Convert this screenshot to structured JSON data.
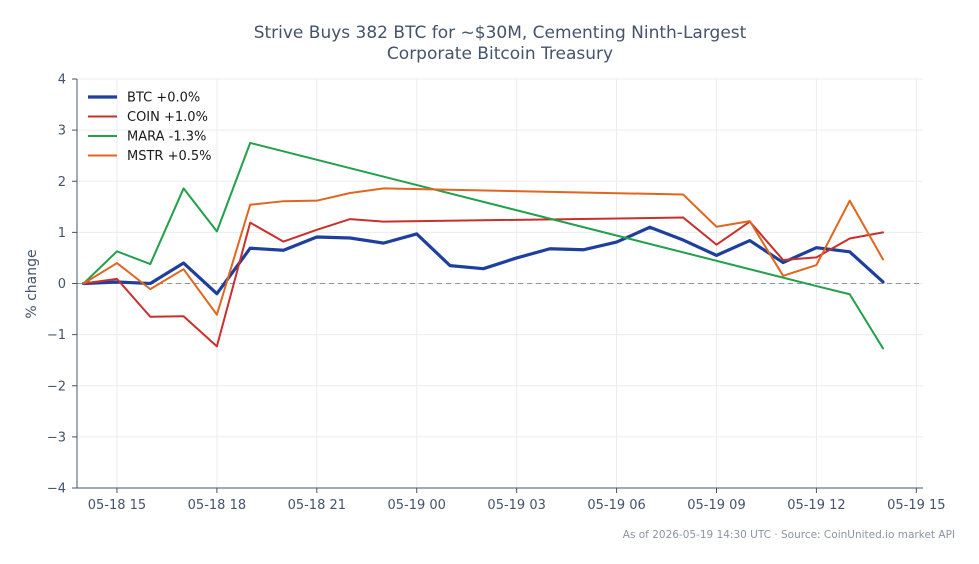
{
  "chart_data": {
    "type": "line",
    "title_lines": [
      "Strive Buys 382 BTC for ~$30M, Cementing Ninth-Largest",
      "Corporate Bitcoin Treasury"
    ],
    "xlabel": "",
    "ylabel": "% change",
    "ylim": [
      -4,
      4
    ],
    "yticks": [
      -4,
      -3,
      -2,
      -1,
      0,
      1,
      2,
      3,
      4
    ],
    "ytick_labels": [
      "−4",
      "−3",
      "−2",
      "−1",
      "0",
      "1",
      "2",
      "3",
      "4"
    ],
    "xlim": [
      "2026-05-18 13:48",
      "2026-05-19 15:12"
    ],
    "xticks": [
      "2026-05-18 15:00",
      "2026-05-18 18:00",
      "2026-05-18 21:00",
      "2026-05-19 00:00",
      "2026-05-19 03:00",
      "2026-05-19 06:00",
      "2026-05-19 09:00",
      "2026-05-19 12:00",
      "2026-05-19 15:00"
    ],
    "xtick_labels": [
      "05-18 15",
      "05-18 18",
      "05-18 21",
      "05-19 00",
      "05-19 03",
      "05-19 06",
      "05-19 09",
      "05-19 12",
      "05-19 15"
    ],
    "grid": true,
    "zero_line": true,
    "legend_position": "top-left",
    "series": [
      {
        "name": "BTC +0.0%",
        "color": "#1f3f9c",
        "width": 3.2,
        "points": [
          [
            "2026-05-18 14:00",
            0.0
          ],
          [
            "2026-05-18 15:00",
            0.03
          ],
          [
            "2026-05-18 16:00",
            0.0
          ],
          [
            "2026-05-18 17:00",
            0.4
          ],
          [
            "2026-05-18 18:00",
            -0.2
          ],
          [
            "2026-05-18 19:00",
            0.69
          ],
          [
            "2026-05-18 20:00",
            0.65
          ],
          [
            "2026-05-18 21:00",
            0.91
          ],
          [
            "2026-05-18 22:00",
            0.89
          ],
          [
            "2026-05-18 23:00",
            0.79
          ],
          [
            "2026-05-19 00:00",
            0.97
          ],
          [
            "2026-05-19 01:00",
            0.35
          ],
          [
            "2026-05-19 02:00",
            0.29
          ],
          [
            "2026-05-19 03:00",
            0.5
          ],
          [
            "2026-05-19 04:00",
            0.68
          ],
          [
            "2026-05-19 05:00",
            0.66
          ],
          [
            "2026-05-19 06:00",
            0.81
          ],
          [
            "2026-05-19 07:00",
            1.1
          ],
          [
            "2026-05-19 08:00",
            0.85
          ],
          [
            "2026-05-19 09:00",
            0.55
          ],
          [
            "2026-05-19 10:00",
            0.84
          ],
          [
            "2026-05-19 11:00",
            0.41
          ],
          [
            "2026-05-19 12:00",
            0.7
          ],
          [
            "2026-05-19 13:00",
            0.62
          ],
          [
            "2026-05-19 14:00",
            0.03
          ]
        ]
      },
      {
        "name": "COIN +1.0%",
        "color": "#c9302c",
        "width": 2,
        "points": [
          [
            "2026-05-18 14:00",
            0.0
          ],
          [
            "2026-05-18 15:00",
            0.09
          ],
          [
            "2026-05-18 16:00",
            -0.65
          ],
          [
            "2026-05-18 17:00",
            -0.64
          ],
          [
            "2026-05-18 18:00",
            -1.23
          ],
          [
            "2026-05-18 19:00",
            1.19
          ],
          [
            "2026-05-18 20:00",
            0.82
          ],
          [
            "2026-05-18 21:00",
            1.05
          ],
          [
            "2026-05-18 22:00",
            1.26
          ],
          [
            "2026-05-18 23:00",
            1.21
          ],
          [
            "2026-05-19 08:00",
            1.29
          ],
          [
            "2026-05-19 09:00",
            0.76
          ],
          [
            "2026-05-19 10:00",
            1.21
          ],
          [
            "2026-05-19 11:00",
            0.46
          ],
          [
            "2026-05-19 12:00",
            0.51
          ],
          [
            "2026-05-19 13:00",
            0.88
          ],
          [
            "2026-05-19 14:00",
            1.0
          ]
        ]
      },
      {
        "name": "MARA -1.3%",
        "color": "#22a04b",
        "width": 2,
        "points": [
          [
            "2026-05-18 14:00",
            0.0
          ],
          [
            "2026-05-18 15:00",
            0.63
          ],
          [
            "2026-05-18 16:00",
            0.38
          ],
          [
            "2026-05-18 17:00",
            1.86
          ],
          [
            "2026-05-18 18:00",
            1.02
          ],
          [
            "2026-05-18 19:00",
            2.75
          ],
          [
            "2026-05-19 12:00",
            -0.05
          ],
          [
            "2026-05-19 13:00",
            -0.21
          ],
          [
            "2026-05-19 14:00",
            -1.27
          ]
        ]
      },
      {
        "name": "MSTR +0.5%",
        "color": "#e0661e",
        "width": 2,
        "points": [
          [
            "2026-05-18 14:00",
            0.0
          ],
          [
            "2026-05-18 15:00",
            0.4
          ],
          [
            "2026-05-18 16:00",
            -0.11
          ],
          [
            "2026-05-18 17:00",
            0.28
          ],
          [
            "2026-05-18 18:00",
            -0.61
          ],
          [
            "2026-05-18 19:00",
            1.54
          ],
          [
            "2026-05-18 20:00",
            1.61
          ],
          [
            "2026-05-18 21:00",
            1.62
          ],
          [
            "2026-05-18 22:00",
            1.77
          ],
          [
            "2026-05-18 23:00",
            1.86
          ],
          [
            "2026-05-19 08:00",
            1.74
          ],
          [
            "2026-05-19 09:00",
            1.11
          ],
          [
            "2026-05-19 10:00",
            1.22
          ],
          [
            "2026-05-19 11:00",
            0.15
          ],
          [
            "2026-05-19 12:00",
            0.36
          ],
          [
            "2026-05-19 13:00",
            1.62
          ],
          [
            "2026-05-19 14:00",
            0.47
          ]
        ]
      }
    ],
    "footnote": "As of 2026-05-19 14:30 UTC · Source: CoinUnited.io market API"
  }
}
